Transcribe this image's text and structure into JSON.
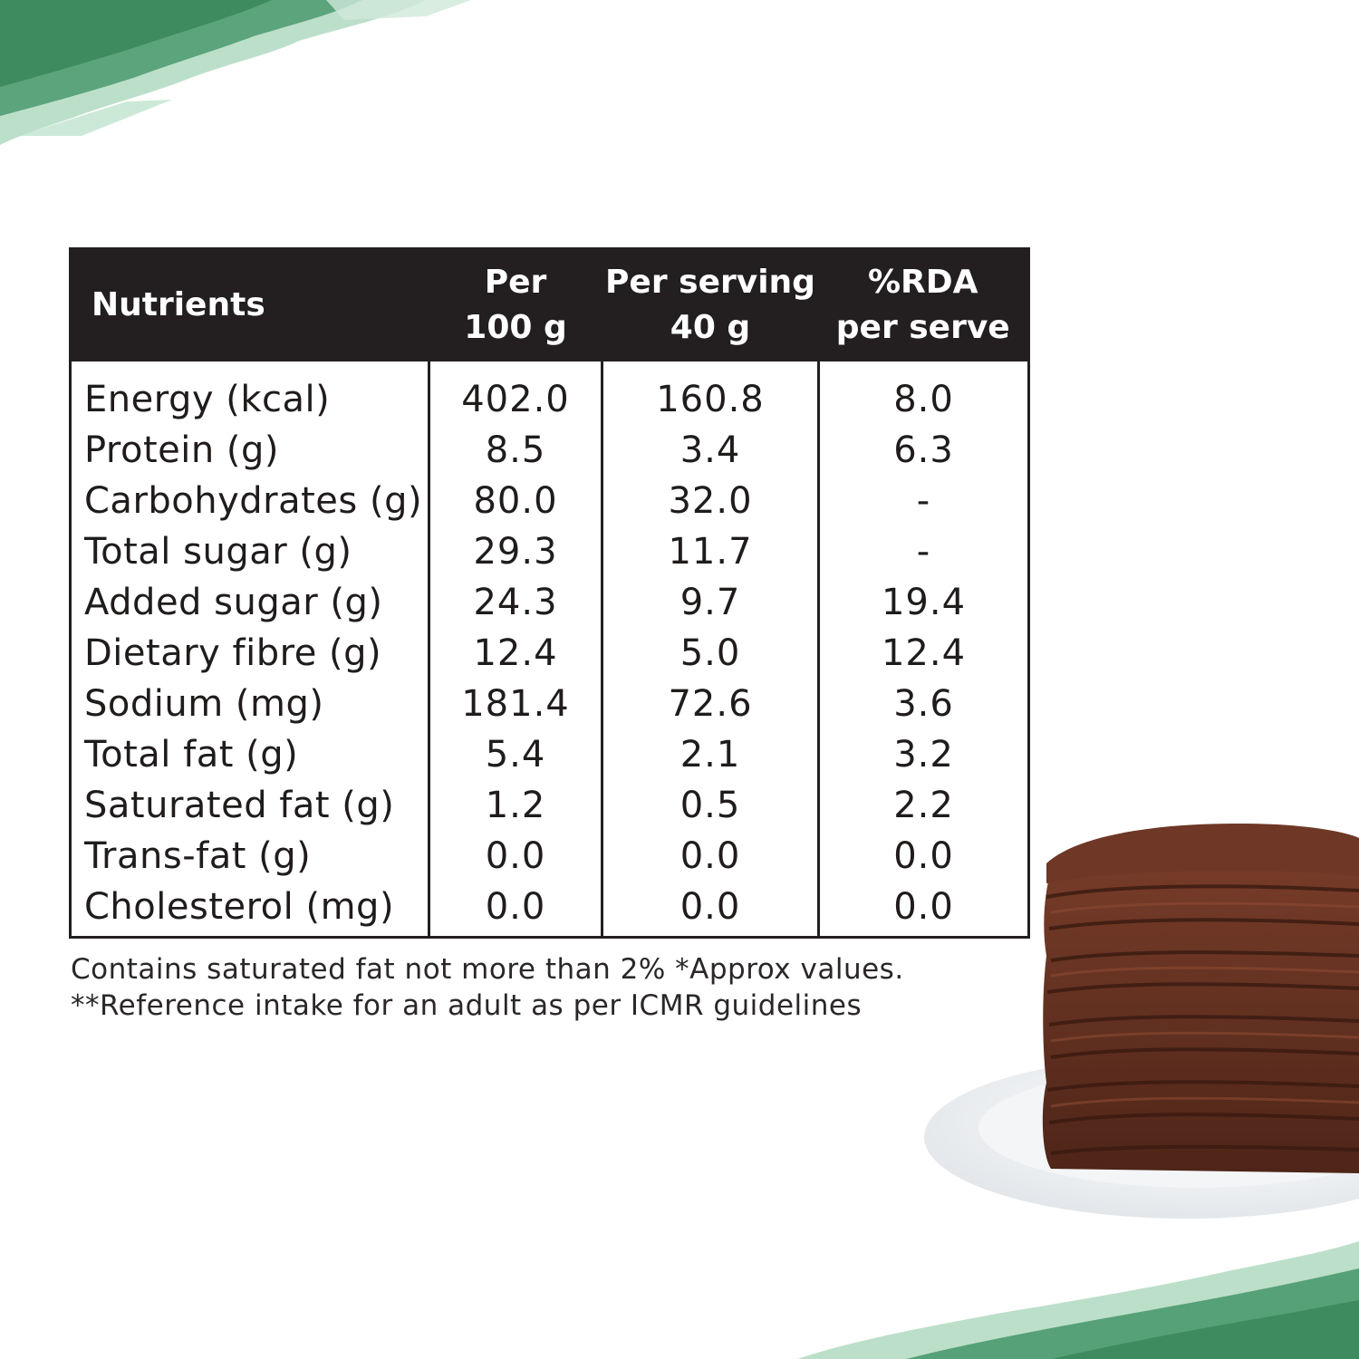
{
  "colors": {
    "header_bg": "#231f20",
    "header_text": "#ffffff",
    "body_text": "#1f1c1b",
    "brush_green": "#4a9a6e",
    "brush_light": "#9fd2b4",
    "pancake_brown": "#6a3524",
    "plate": "#eef0f2"
  },
  "table": {
    "header": {
      "nutrients": "Nutrients",
      "col1_line1": "Per",
      "col1_line2": "100 g",
      "col2_line1": "Per serving",
      "col2_line2": "40 g",
      "col3_line1": "%RDA",
      "col3_line2": "per serve"
    },
    "rows": [
      {
        "name": "Energy (kcal)",
        "per100": "402.0",
        "perServing": "160.8",
        "rda": "8.0"
      },
      {
        "name": "Protein (g)",
        "per100": "8.5",
        "perServing": "3.4",
        "rda": "6.3"
      },
      {
        "name": "Carbohydrates (g)",
        "per100": "80.0",
        "perServing": "32.0",
        "rda": "-"
      },
      {
        "name": "Total sugar (g)",
        "per100": "29.3",
        "perServing": "11.7",
        "rda": "-"
      },
      {
        "name": "Added sugar (g)",
        "per100": "24.3",
        "perServing": "9.7",
        "rda": "19.4"
      },
      {
        "name": "Dietary fibre (g)",
        "per100": "12.4",
        "perServing": "5.0",
        "rda": "12.4"
      },
      {
        "name": "Sodium (mg)",
        "per100": "181.4",
        "perServing": "72.6",
        "rda": "3.6"
      },
      {
        "name": "Total fat (g)",
        "per100": "5.4",
        "perServing": "2.1",
        "rda": "3.2"
      },
      {
        "name": "Saturated fat (g)",
        "per100": "1.2",
        "perServing": "0.5",
        "rda": "2.2"
      },
      {
        "name": "Trans-fat (g)",
        "per100": "0.0",
        "perServing": "0.0",
        "rda": "0.0"
      },
      {
        "name": "Cholesterol (mg)",
        "per100": "0.0",
        "perServing": "0.0",
        "rda": "0.0"
      }
    ]
  },
  "footnotes": {
    "line1": "Contains saturated fat not more than 2% *Approx values.",
    "line2": "**Reference intake for an adult as per ICMR guidelines"
  },
  "decor": {
    "top_brush_icon": "green-brush-stroke-icon",
    "bottom_brush_icon": "green-brush-stroke-icon",
    "photo": "pancake-stack-image"
  }
}
